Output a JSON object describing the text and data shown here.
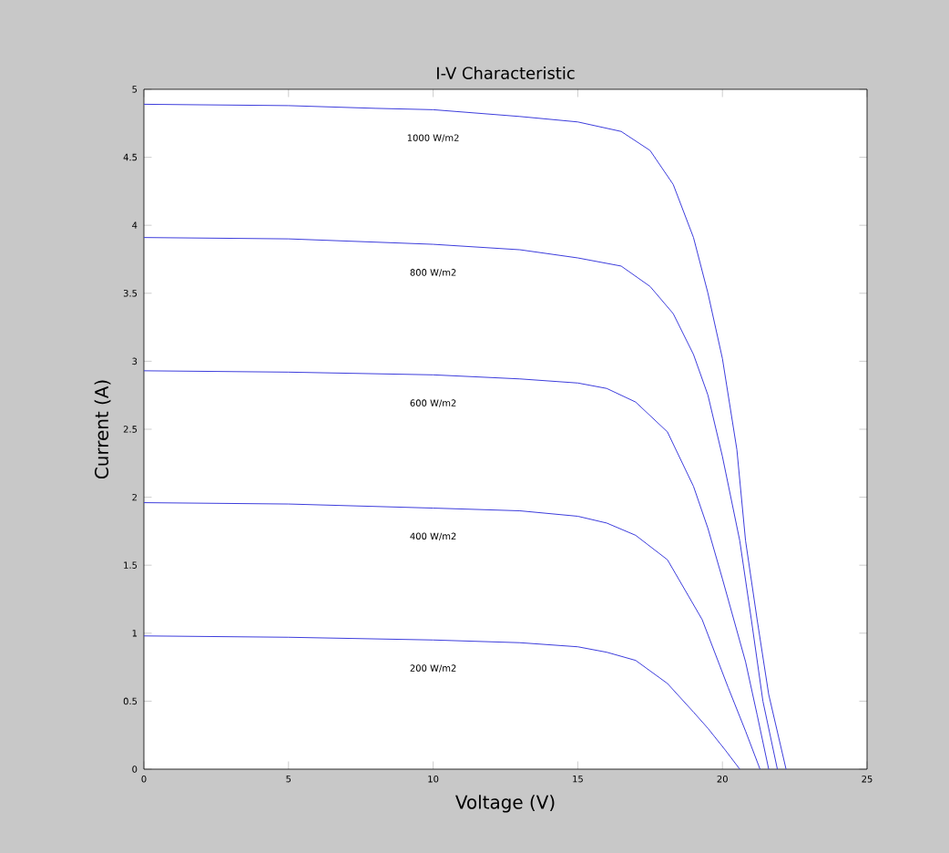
{
  "chart_data": {
    "type": "line",
    "title": "I-V Characteristic",
    "xlabel": "Voltage (V)",
    "ylabel": "Current (A)",
    "xlim": [
      0,
      25
    ],
    "ylim": [
      0,
      5
    ],
    "xticks": [
      0,
      5,
      10,
      15,
      20,
      25
    ],
    "yticks": [
      0,
      0.5,
      1,
      1.5,
      2,
      2.5,
      3,
      3.5,
      4,
      4.5,
      5
    ],
    "grid": false,
    "legend": false,
    "marker": "none",
    "line_style": "solid",
    "series": [
      {
        "name": "1000 W/m2",
        "color": "#3c3cdc",
        "x": [
          0,
          5,
          8,
          10,
          13,
          15,
          16.5,
          17.5,
          18.3,
          19,
          19.5,
          20,
          20.5,
          20.8,
          21.2,
          21.6,
          22.2
        ],
        "values": [
          4.89,
          4.88,
          4.86,
          4.85,
          4.8,
          4.76,
          4.69,
          4.55,
          4.3,
          3.91,
          3.5,
          3.02,
          2.35,
          1.68,
          1.1,
          0.55,
          0
        ]
      },
      {
        "name": "800 W/m2",
        "color": "#3c3cdc",
        "x": [
          0,
          5,
          10,
          13,
          15,
          16.5,
          17.5,
          18.3,
          19,
          19.5,
          20,
          20.6,
          21,
          21.4,
          21.9
        ],
        "values": [
          3.91,
          3.9,
          3.86,
          3.82,
          3.76,
          3.7,
          3.55,
          3.35,
          3.05,
          2.75,
          2.3,
          1.68,
          1.1,
          0.5,
          0
        ]
      },
      {
        "name": "600 W/m2",
        "color": "#3c3cdc",
        "x": [
          0,
          5,
          10,
          13,
          15,
          16,
          17,
          18.1,
          19,
          19.5,
          20,
          20.8,
          21.2,
          21.6
        ],
        "values": [
          2.93,
          2.92,
          2.9,
          2.87,
          2.84,
          2.8,
          2.7,
          2.48,
          2.08,
          1.77,
          1.4,
          0.79,
          0.4,
          0
        ]
      },
      {
        "name": "400 W/m2",
        "color": "#3c3cdc",
        "x": [
          0,
          5,
          10,
          13,
          15,
          16,
          17,
          18.1,
          19.3,
          20.2,
          20.8,
          21.3
        ],
        "values": [
          1.96,
          1.95,
          1.92,
          1.9,
          1.86,
          1.81,
          1.72,
          1.54,
          1.1,
          0.6,
          0.28,
          0
        ]
      },
      {
        "name": "200 W/m2",
        "color": "#3c3cdc",
        "x": [
          0,
          5,
          10,
          13,
          15,
          16,
          17,
          18.1,
          19,
          19.5,
          20.1,
          20.6
        ],
        "values": [
          0.98,
          0.97,
          0.95,
          0.93,
          0.9,
          0.86,
          0.8,
          0.63,
          0.42,
          0.3,
          0.14,
          0
        ]
      }
    ]
  }
}
